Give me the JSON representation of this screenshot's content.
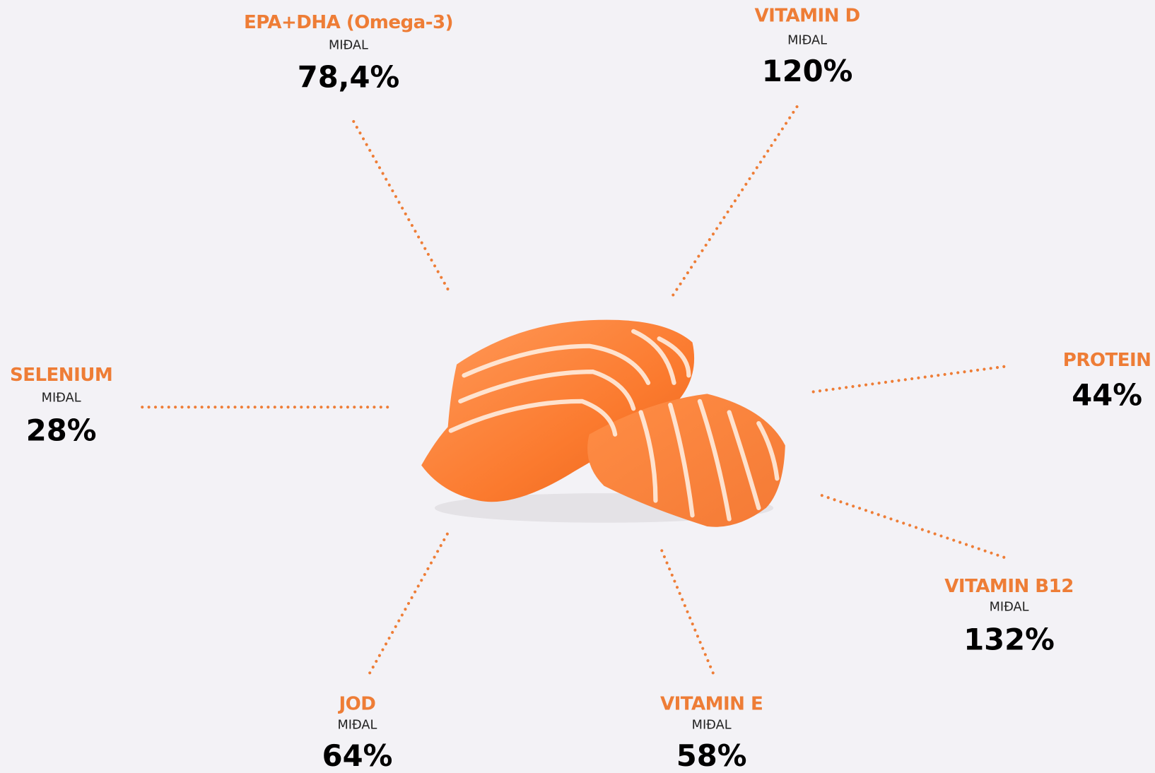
{
  "items": [
    {
      "label": "EPA+DHA (Omega-3)",
      "sub": "MIÐAL",
      "value": "78,4%"
    },
    {
      "label": "VITAMIN D",
      "sub": "MIÐAL",
      "value": "120%"
    },
    {
      "label": "PROTEIN",
      "value": "44%"
    },
    {
      "label": "VITAMIN B12",
      "sub": "MIÐAL",
      "value": "132%"
    },
    {
      "label": "VITAMIN E",
      "sub": "MIÐAL",
      "value": "58%"
    },
    {
      "label": "JOD",
      "sub": "MIÐAL",
      "value": "64%"
    },
    {
      "label": "SELENIUM",
      "sub": "MIÐAL",
      "value": "28%"
    }
  ]
}
